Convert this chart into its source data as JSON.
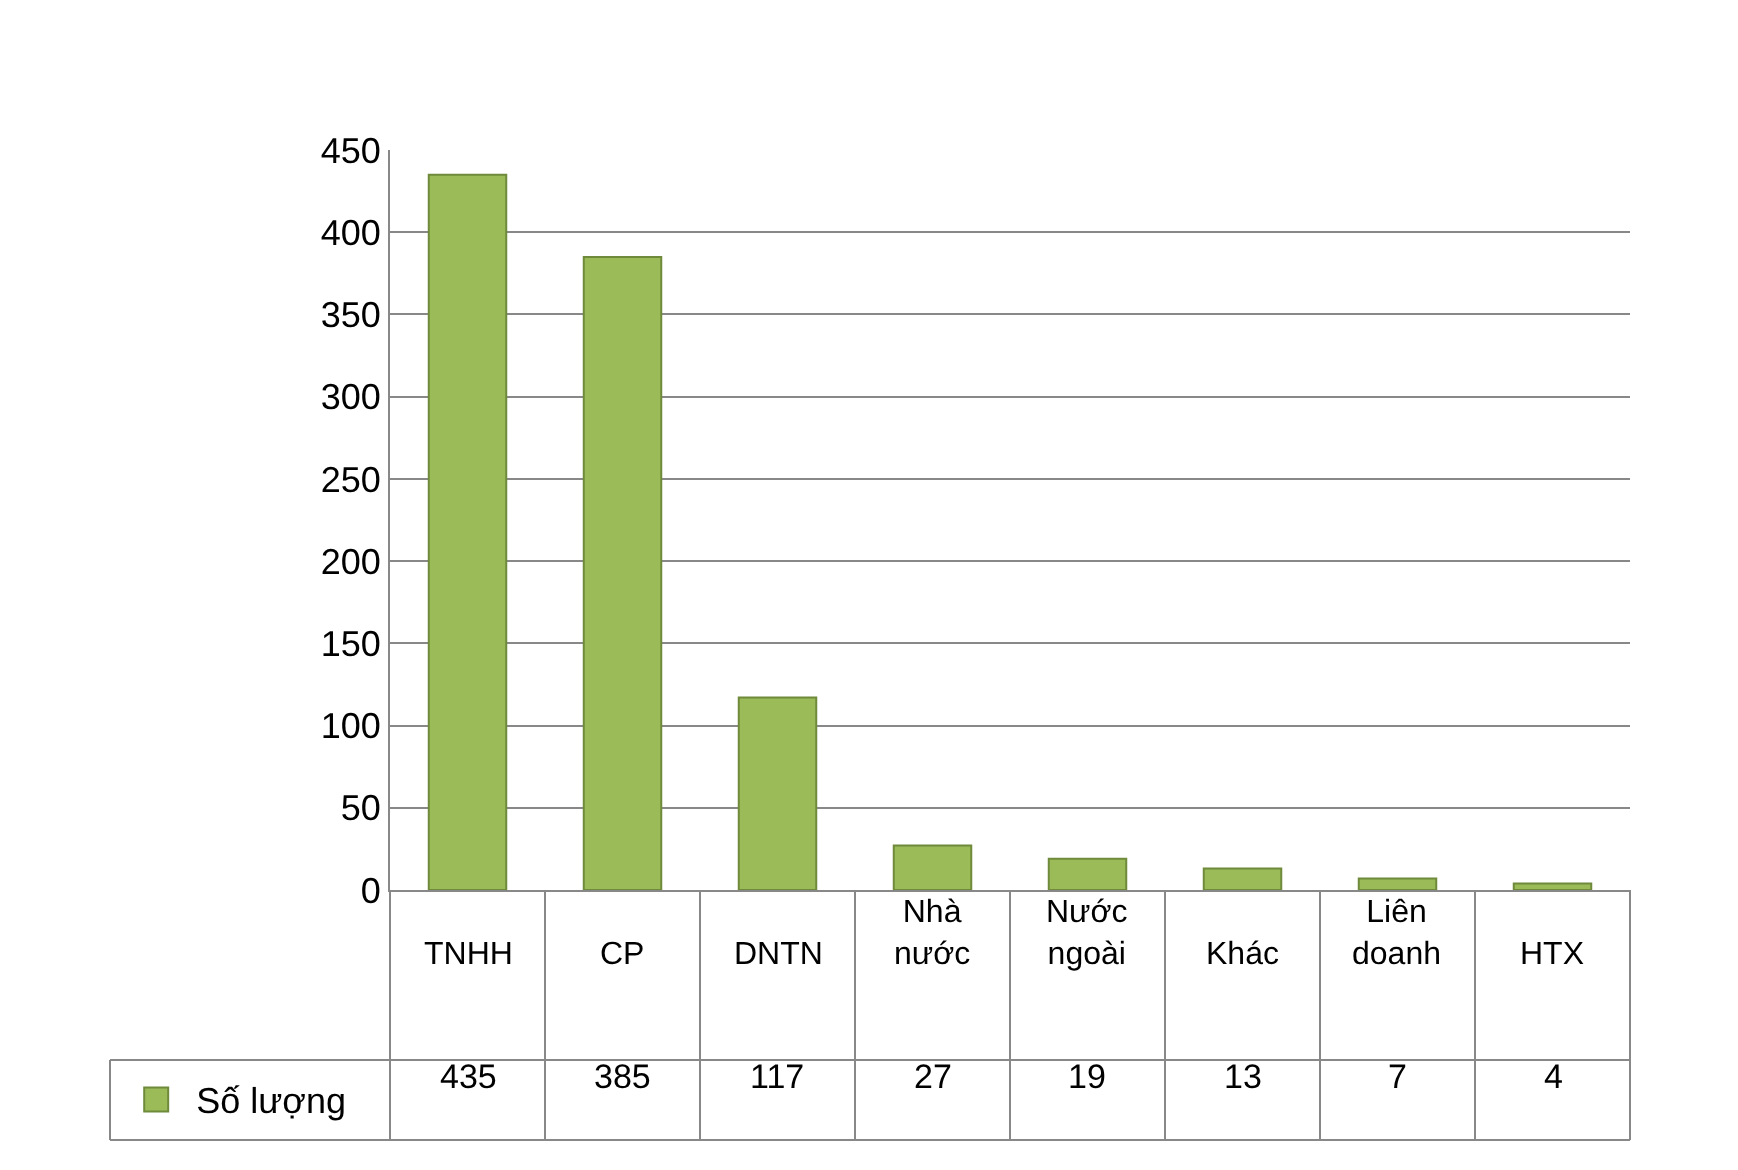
{
  "chart_data": {
    "type": "bar",
    "categories": [
      "TNHH",
      "CP",
      "DNTN",
      "Nhà nước",
      "Nước ngoài",
      "Khác",
      "Liên doanh",
      "HTX"
    ],
    "series": [
      {
        "name": "Số lượng",
        "color": "#9bbb59",
        "values": [
          435,
          385,
          117,
          27,
          19,
          13,
          7,
          4
        ]
      }
    ],
    "ylim": [
      0,
      450
    ],
    "yticks": [
      0,
      50,
      100,
      150,
      200,
      250,
      300,
      350,
      400,
      450
    ],
    "grid": "y",
    "legend": "bottom left",
    "data_labels": true
  }
}
